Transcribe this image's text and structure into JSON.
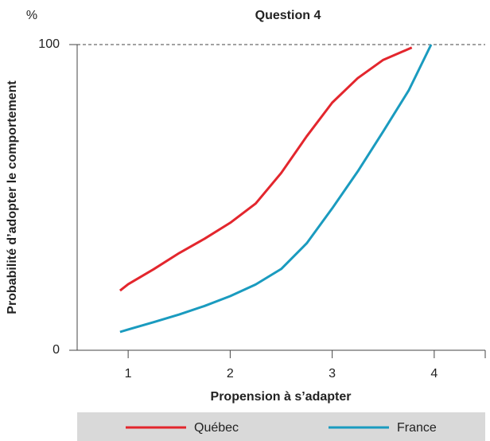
{
  "chart_data": {
    "type": "line",
    "title": "Question 4",
    "y_unit": "%",
    "x_label": "Propension à s’adapter",
    "y_label": "Probabilité d’adopter le comportement",
    "xlim": [
      0.5,
      4.5
    ],
    "ylim": [
      0,
      100
    ],
    "xticks": [
      1,
      2,
      3,
      4
    ],
    "yticks": [
      0,
      100
    ],
    "series": [
      {
        "name": "Québec",
        "color": "#e3262d",
        "x": [
          0.92,
          1.0,
          1.25,
          1.5,
          1.75,
          2.0,
          2.25,
          2.5,
          2.75,
          3.0,
          3.25,
          3.5,
          3.78
        ],
        "values": [
          19.5,
          21.6,
          26.5,
          31.8,
          36.5,
          41.7,
          48,
          58,
          70,
          81,
          89,
          95,
          99
        ]
      },
      {
        "name": "France",
        "color": "#1a9bbf",
        "x": [
          0.92,
          1.0,
          1.25,
          1.5,
          1.75,
          2.0,
          2.25,
          2.5,
          2.75,
          3.0,
          3.25,
          3.5,
          3.75,
          3.97
        ],
        "values": [
          6,
          6.8,
          9.2,
          11.7,
          14.5,
          17.7,
          21.5,
          26.6,
          35,
          46.4,
          58.5,
          71.6,
          85,
          100
        ]
      }
    ]
  }
}
